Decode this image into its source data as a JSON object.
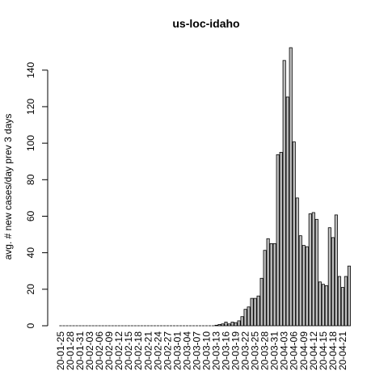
{
  "chart_data": {
    "type": "bar",
    "title": "us-loc-idaho",
    "y_label": "avg. # new cases/day prev  3  days",
    "categories": [
      "20-01-25",
      null,
      null,
      "20-01-28",
      null,
      null,
      "20-01-31",
      null,
      null,
      "20-02-03",
      null,
      null,
      "20-02-06",
      null,
      null,
      "20-02-09",
      null,
      null,
      "20-02-12",
      null,
      null,
      "20-02-15",
      null,
      null,
      "20-02-18",
      null,
      null,
      "20-02-21",
      null,
      null,
      "20-02-24",
      null,
      null,
      "20-02-27",
      null,
      null,
      "20-03-01",
      null,
      null,
      "20-03-04",
      null,
      null,
      "20-03-07",
      null,
      null,
      "20-03-10",
      null,
      null,
      "20-03-13",
      null,
      null,
      "20-03-16",
      null,
      null,
      "20-03-19",
      null,
      null,
      "20-03-22",
      null,
      null,
      "20-03-25",
      null,
      null,
      "20-03-28",
      null,
      null,
      "20-03-31",
      null,
      null,
      "20-04-03",
      null,
      null,
      "20-04-06",
      null,
      null,
      "20-04-09",
      null,
      null,
      "20-04-12",
      null,
      null,
      "20-04-15",
      null,
      null,
      "20-04-18",
      null,
      null,
      "20-04-21",
      null,
      null
    ],
    "values": [
      0,
      0,
      0,
      0,
      0,
      0,
      0,
      0,
      0,
      0,
      0,
      0,
      0,
      0,
      0,
      0,
      0,
      0,
      0,
      0,
      0,
      0,
      0,
      0,
      0,
      0,
      0,
      0,
      0,
      0,
      0,
      0,
      0,
      0,
      0,
      0,
      0,
      0,
      0,
      0,
      0,
      0,
      0,
      0,
      0,
      0,
      0,
      0,
      0.3,
      0.7,
      1,
      2,
      1,
      2,
      1.7,
      2.7,
      5,
      9,
      10.3,
      15,
      15,
      16.3,
      26,
      41.3,
      47.7,
      45,
      45,
      93.7,
      95,
      145.3,
      125.3,
      152.3,
      100.7,
      70,
      49.3,
      44,
      43.3,
      61.3,
      62,
      58.3,
      24,
      22.7,
      22,
      53.7,
      48.3,
      60.7,
      27,
      21,
      27,
      32.7
    ],
    "color": "#bebebe",
    "ylim": [
      0,
      152.3
    ],
    "yticks": [
      0,
      20,
      40,
      60,
      80,
      100,
      120,
      140
    ]
  }
}
